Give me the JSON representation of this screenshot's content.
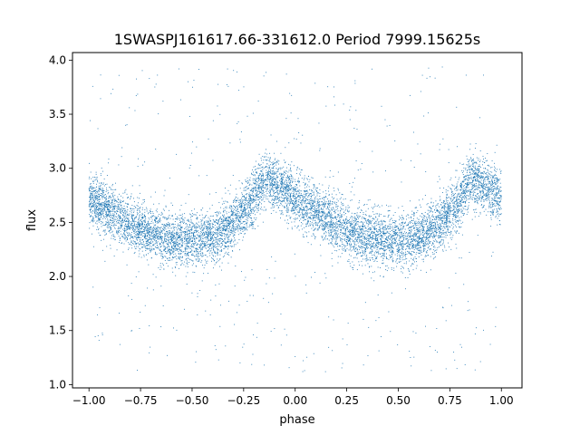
{
  "chart_data": {
    "type": "scatter",
    "title": "1SWASPJ161617.66-331612.0 Period 7999.15625s",
    "xlabel": "phase",
    "ylabel": "flux",
    "xlim": [
      -1.08,
      1.1
    ],
    "ylim": [
      0.97,
      4.07
    ],
    "xticks": [
      -1.0,
      -0.75,
      -0.5,
      -0.25,
      0.0,
      0.25,
      0.5,
      0.75,
      1.0
    ],
    "xtick_labels": [
      "−1.00",
      "−0.75",
      "−0.50",
      "−0.25",
      "0.00",
      "0.25",
      "0.50",
      "0.75",
      "1.00"
    ],
    "yticks": [
      1.0,
      1.5,
      2.0,
      2.5,
      3.0,
      3.5,
      4.0
    ],
    "ytick_labels": [
      "1.0",
      "1.5",
      "2.0",
      "2.5",
      "3.0",
      "3.5",
      "4.0"
    ],
    "grid": false,
    "legend": "none",
    "marker_color": "#1f77b4",
    "series": [
      {
        "phase": [
          -1.0,
          -0.9,
          -0.8,
          -0.7,
          -0.6,
          -0.5,
          -0.4,
          -0.3,
          -0.2,
          -0.15,
          -0.1,
          -0.05,
          0.0,
          0.1,
          0.2,
          0.3,
          0.4,
          0.5,
          0.6,
          0.7,
          0.8,
          0.85,
          0.9,
          0.95,
          1.0
        ],
        "median_flux": [
          2.72,
          2.6,
          2.48,
          2.4,
          2.35,
          2.33,
          2.36,
          2.48,
          2.72,
          2.88,
          2.86,
          2.8,
          2.72,
          2.6,
          2.48,
          2.4,
          2.35,
          2.33,
          2.36,
          2.48,
          2.72,
          2.88,
          2.86,
          2.8,
          2.72
        ],
        "scatter_spread": 0.12,
        "outlier_range": [
          1.1,
          3.95
        ]
      }
    ]
  }
}
